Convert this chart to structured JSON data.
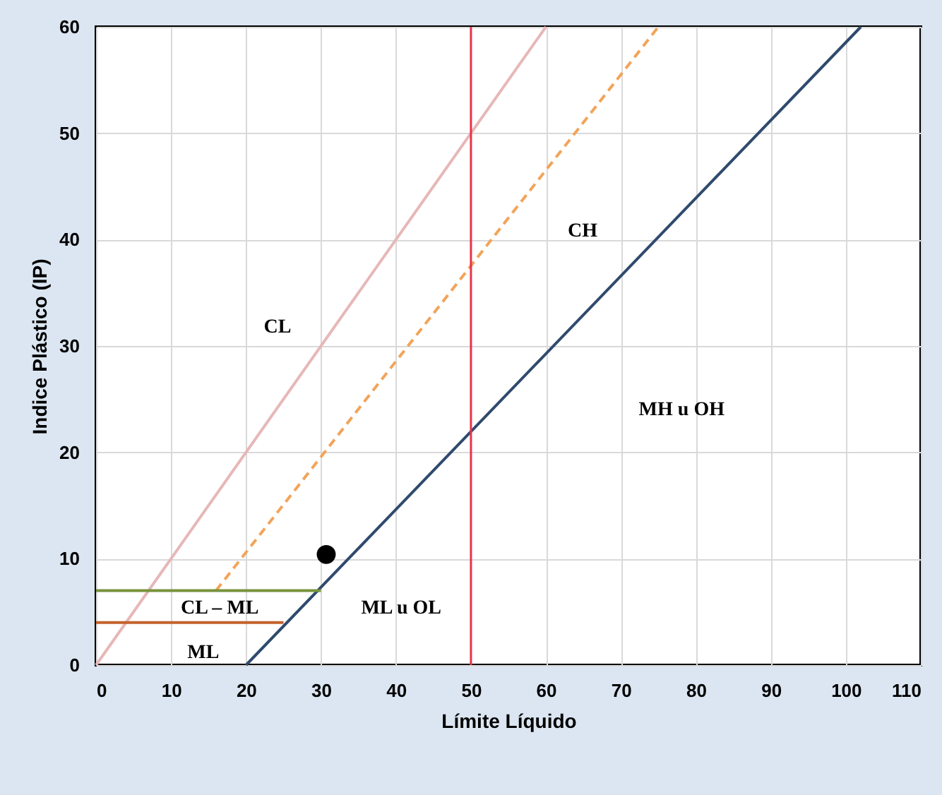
{
  "chart_data": {
    "type": "line",
    "xlabel": "Límite Líquido",
    "ylabel": "Indice Plástico (IP)",
    "xlim": [
      0,
      110
    ],
    "xticks": [
      0,
      10,
      20,
      30,
      40,
      50,
      60,
      70,
      80,
      90,
      100,
      110
    ],
    "ylim": [
      0,
      60
    ],
    "yticks": [
      0,
      10,
      20,
      30,
      40,
      50,
      60
    ],
    "grid": true,
    "marker": "none",
    "series": [
      {
        "color": "#e6b8b7",
        "x": [
          0,
          60
        ],
        "values": [
          0,
          60
        ],
        "line_style": "solid"
      },
      {
        "color": "#f2a45a",
        "x": [
          16,
          75
        ],
        "values": [
          7,
          60
        ],
        "line_style": "dashed"
      },
      {
        "color": "#2f4a6d",
        "x": [
          20,
          102
        ],
        "values": [
          0,
          60
        ],
        "line_style": "solid"
      },
      {
        "color": "#77933c",
        "x": [
          0,
          30
        ],
        "values": [
          7,
          7
        ],
        "line_style": "solid"
      },
      {
        "color": "#c4622d",
        "x": [
          0,
          25
        ],
        "values": [
          4,
          4
        ],
        "line_style": "solid"
      },
      {
        "type": "scatter",
        "color": "#000000",
        "x": [
          30.7
        ],
        "values": [
          10.4
        ],
        "marker": "circle"
      }
    ],
    "ref_lines": [
      {
        "axis": "x",
        "value": 50,
        "color": "#e8334a"
      }
    ],
    "annotations": [
      "CL",
      "CH",
      "MH u OH",
      "CL – ML",
      "ML u OL",
      "ML"
    ]
  }
}
